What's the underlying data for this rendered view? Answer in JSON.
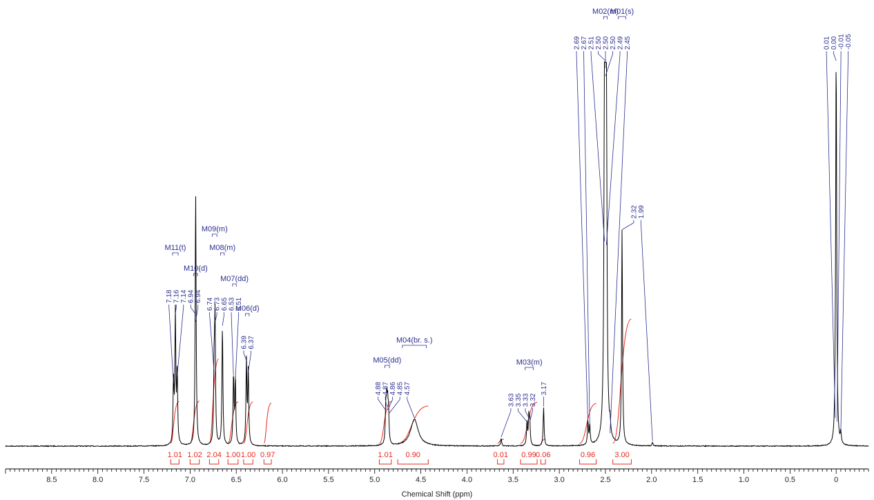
{
  "chart_data": {
    "type": "line",
    "title": "",
    "xlabel": "Chemical Shift (ppm)",
    "ylabel": "",
    "xlim": [
      9.0,
      -0.35
    ],
    "x_reversed": true,
    "grid": false,
    "legend": "none",
    "x_ticks": [
      "8.5",
      "8.0",
      "7.5",
      "7.0",
      "6.5",
      "6.0",
      "5.5",
      "5.0",
      "4.5",
      "4.0",
      "3.5",
      "3.0",
      "2.5",
      "2.0",
      "1.5",
      "1.0",
      "0.5",
      "0"
    ],
    "x_tick_values": [
      8.5,
      8.0,
      7.5,
      7.0,
      6.5,
      6.0,
      5.5,
      5.0,
      4.5,
      4.0,
      3.5,
      3.0,
      2.5,
      2.0,
      1.5,
      1.0,
      0.5,
      0.0
    ],
    "peaks": [
      {
        "ppm": 7.18,
        "label": "7.18",
        "height": 0.16
      },
      {
        "ppm": 7.16,
        "label": "7.16",
        "height": 0.34
      },
      {
        "ppm": 7.14,
        "label": "7.14",
        "height": 0.18
      },
      {
        "ppm": 6.94,
        "label": "6.94",
        "height": 0.34
      },
      {
        "ppm": 6.94,
        "label": "6.94",
        "height": 0.32
      },
      {
        "ppm": 6.74,
        "label": "6.74",
        "height": 0.19
      },
      {
        "ppm": 6.73,
        "label": "6.73",
        "height": 0.32
      },
      {
        "ppm": 6.65,
        "label": "6.65",
        "height": 0.31
      },
      {
        "ppm": 6.53,
        "label": "6.53",
        "height": 0.18
      },
      {
        "ppm": 6.51,
        "label": "6.51",
        "height": 0.17
      },
      {
        "ppm": 6.39,
        "label": "6.39",
        "height": 0.22
      },
      {
        "ppm": 6.37,
        "label": "6.37",
        "height": 0.19
      },
      {
        "ppm": 4.88,
        "label": "4.88",
        "height": 0.09
      },
      {
        "ppm": 4.87,
        "label": "4.87",
        "height": 0.1
      },
      {
        "ppm": 4.86,
        "label": "4.86",
        "height": 0.09
      },
      {
        "ppm": 4.85,
        "label": "4.85",
        "height": 0.08
      },
      {
        "ppm": 4.57,
        "label": "4.57",
        "height": 0.07
      },
      {
        "ppm": 3.63,
        "label": "3.63",
        "height": 0.02
      },
      {
        "ppm": 3.35,
        "label": "3.35",
        "height": 0.06
      },
      {
        "ppm": 3.33,
        "label": "3.33",
        "height": 0.07
      },
      {
        "ppm": 3.32,
        "label": "3.32",
        "height": 0.06
      },
      {
        "ppm": 3.17,
        "label": "3.17",
        "height": 0.1
      },
      {
        "ppm": 2.69,
        "label": "2.69",
        "height": 0.06
      },
      {
        "ppm": 2.67,
        "label": "2.67",
        "height": 0.05
      },
      {
        "ppm": 2.51,
        "label": "2.51",
        "height": 0.53
      },
      {
        "ppm": 2.5,
        "label": "2.50",
        "height": 1.0
      },
      {
        "ppm": 2.5,
        "label": "2.50",
        "height": 0.98
      },
      {
        "ppm": 2.5,
        "label": "2.50",
        "height": 0.96
      },
      {
        "ppm": 2.49,
        "label": "2.49",
        "height": 0.52
      },
      {
        "ppm": 2.45,
        "label": "2.45",
        "height": 0.03
      },
      {
        "ppm": 2.32,
        "label": "2.32",
        "height": 0.56
      },
      {
        "ppm": 1.99,
        "label": "1.99",
        "height": 0.01
      },
      {
        "ppm": 0.01,
        "label": "0.01",
        "height": 0.07
      },
      {
        "ppm": 0.0,
        "label": "0.00",
        "height": 1.0
      },
      {
        "ppm": -0.01,
        "label": "-0.01",
        "height": 0.06
      },
      {
        "ppm": -0.05,
        "label": "-0.05",
        "height": 0.03
      }
    ],
    "multiplets": [
      {
        "label": "M11(t)",
        "from": 7.19,
        "to": 7.13
      },
      {
        "label": "M10(d)",
        "from": 6.96,
        "to": 6.92
      },
      {
        "label": "M09(m)",
        "from": 6.76,
        "to": 6.71
      },
      {
        "label": "M08(m)",
        "from": 6.67,
        "to": 6.63
      },
      {
        "label": "M07(dd)",
        "from": 6.54,
        "to": 6.5
      },
      {
        "label": "M06(d)",
        "from": 6.4,
        "to": 6.36
      },
      {
        "label": "M05(dd)",
        "from": 4.89,
        "to": 4.84
      },
      {
        "label": "M04(br. s.)",
        "from": 4.7,
        "to": 4.44
      },
      {
        "label": "M03(m)",
        "from": 3.37,
        "to": 3.28
      },
      {
        "label": "M02(m)",
        "from": 2.52,
        "to": 2.48
      },
      {
        "label": "M01(s)",
        "from": 2.36,
        "to": 2.28
      }
    ],
    "integrals": [
      {
        "label": "1.01",
        "from": 7.21,
        "to": 7.12
      },
      {
        "label": "1.02",
        "from": 7.0,
        "to": 6.9
      },
      {
        "label": "2.04",
        "from": 6.79,
        "to": 6.69
      },
      {
        "label": "1.00",
        "from": 6.59,
        "to": 6.48
      },
      {
        "label": "1.00",
        "from": 6.42,
        "to": 6.32
      },
      {
        "label": "0.97",
        "from": 6.2,
        "to": 6.12
      },
      {
        "label": "1.01",
        "from": 4.95,
        "to": 4.82
      },
      {
        "label": "0.90",
        "from": 4.75,
        "to": 4.42
      },
      {
        "label": "0.01",
        "from": 3.67,
        "to": 3.6
      },
      {
        "label": "0.99",
        "from": 3.42,
        "to": 3.24
      },
      {
        "label": "0.06",
        "from": 3.2,
        "to": 3.15
      },
      {
        "label": "0.96",
        "from": 2.78,
        "to": 2.6
      },
      {
        "label": "3.00",
        "from": 2.42,
        "to": 2.22
      }
    ],
    "colors": {
      "spectrum": "#000000",
      "integral": "#e8281e",
      "annotation": "#2b2f8f"
    }
  }
}
